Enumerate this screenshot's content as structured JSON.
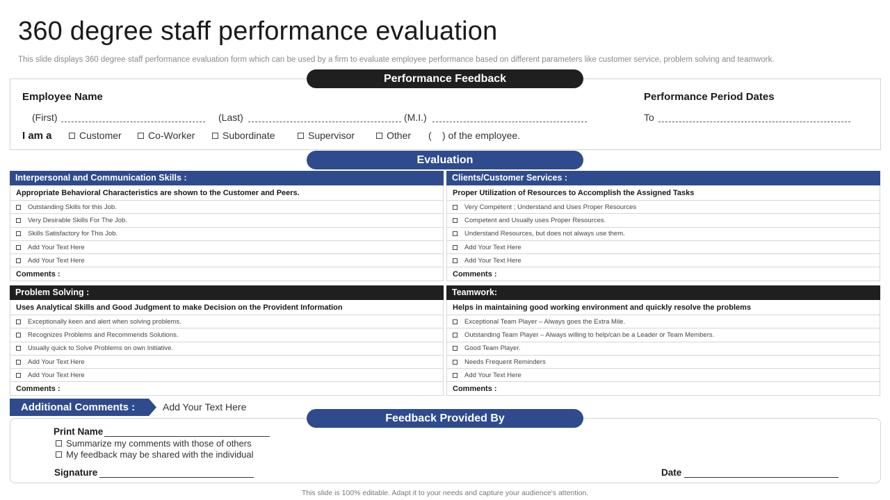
{
  "header": {
    "title": "360 degree staff performance evaluation",
    "subtitle": "This slide displays 360 degree staff performance evaluation form which can be used by a firm to evaluate employee performance based on different parameters like customer service, problem solving and teamwork."
  },
  "performance_feedback": {
    "heading": "Performance Feedback",
    "employee_name_label": "Employee Name",
    "first_label": "(First)",
    "last_label": "(Last)",
    "mi_label": "(M.I.)",
    "period_label": "Performance Period Dates",
    "to_label": "To",
    "i_am_label": "I am a",
    "roles": [
      "Customer",
      "Co-Worker",
      "Subordinate",
      "Supervisor",
      "Other"
    ],
    "paren_open": "(",
    "of_employee": ") of the employee."
  },
  "evaluation": {
    "heading": "Evaluation",
    "sections": [
      {
        "title": "Interpersonal and Communication Skills :",
        "subtitle": "Appropriate Behavioral Characteristics are shown to the Customer and Peers.",
        "items": [
          "Outstanding Skills for this Job.",
          "Very Desirable Skills For The Job.",
          "Skills Satisfactory for This Job.",
          "Add Your Text Here",
          "Add Your Text Here"
        ],
        "comments": "Comments :"
      },
      {
        "title": "Clients/Customer Services :",
        "subtitle": "Proper Utilization of Resources to Accomplish the Assigned Tasks",
        "items": [
          "Very Competent ; Understand and Uses Proper Resources",
          "Competent and Usually uses Proper Resources.",
          "Understand Resources, but does not always use them.",
          "Add Your Text Here",
          "Add Your Text Here"
        ],
        "comments": "Comments :"
      },
      {
        "title": "Problem Solving :",
        "subtitle": "Uses Analytical Skills and Good Judgment to make Decision on the Provident Information",
        "items": [
          "Exceptionally keen and alert when solving problems.",
          "Recognizes Problems and Recommends Solutions.",
          "Usually quick to Solve Problems on own Initiative.",
          "Add Your Text Here",
          "Add Your Text Here"
        ],
        "comments": "Comments :"
      },
      {
        "title": "Teamwork:",
        "subtitle": "Helps in maintaining good working environment and quickly resolve the problems",
        "items": [
          "Exceptional Team Player – Always goes the Extra Mile.",
          "Outstanding Team Player – Always willing to help/can be a Leader or Team Members.",
          "Good Team Player.",
          "Needs Frequent Reminders",
          "Add Your Text Here"
        ],
        "comments": "Comments :"
      }
    ]
  },
  "additional": {
    "label": "Additional Comments :",
    "text": "Add Your Text Here"
  },
  "feedback_by": {
    "heading": "Feedback Provided By",
    "print_name": "Print Name",
    "option1": "Summarize my comments with those of others",
    "option2": "My feedback may be shared with the individual",
    "signature": "Signature",
    "date": "Date"
  },
  "footer": "This slide is 100% editable. Adapt it to your needs and capture your audience's attention.",
  "colors": {
    "accent_blue": "#2f4b8e",
    "dark": "#1f1f1f"
  }
}
